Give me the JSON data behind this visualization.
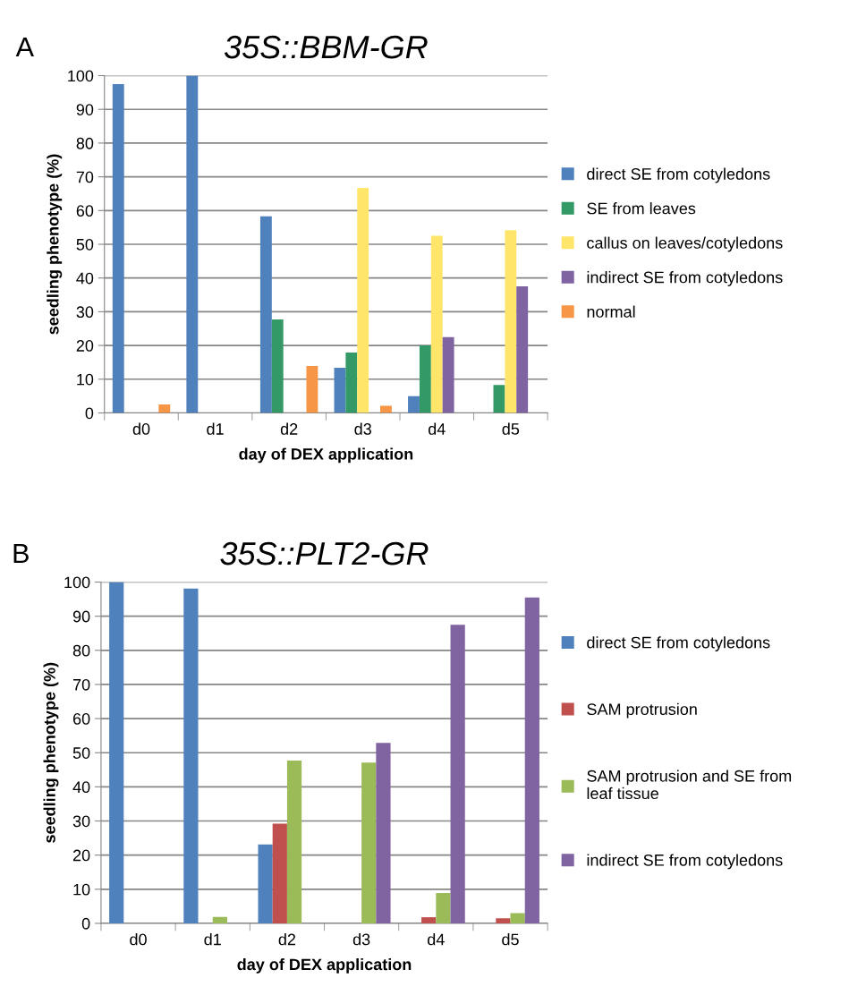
{
  "chart_data": [
    {
      "type": "bar",
      "title": "35S::BBM-GR",
      "xlabel": "day of DEX application",
      "ylabel": "seedling phenotype (%)",
      "annotations": [
        "A"
      ],
      "categories": [
        "d0",
        "d1",
        "d2",
        "d3",
        "d4",
        "d5"
      ],
      "series": [
        {
          "name": "direct SE from cotyledons",
          "color": "#4f81bd",
          "values": [
            97.5,
            100,
            58.3,
            13.4,
            5,
            0
          ]
        },
        {
          "name": "SE from leaves",
          "color": "#339966",
          "values": [
            0,
            0,
            27.7,
            17.9,
            20,
            8.3
          ]
        },
        {
          "name": "callus on leaves/cotyledons",
          "color": "#ffe66b",
          "values": [
            0,
            0,
            0,
            66.7,
            52.5,
            54.2
          ]
        },
        {
          "name": "indirect SE from cotyledons",
          "color": "#8064a2",
          "values": [
            0,
            0,
            0,
            0,
            22.5,
            37.5
          ]
        },
        {
          "name": "normal",
          "color": "#f79646",
          "values": [
            2.5,
            0,
            13.9,
            2.1,
            0,
            0
          ]
        }
      ],
      "ylim": [
        0,
        100
      ],
      "yticks": [
        0,
        10,
        20,
        30,
        40,
        50,
        60,
        70,
        80,
        90,
        100
      ],
      "grid": "y",
      "legend": "right"
    },
    {
      "type": "bar",
      "title": "35S::PLT2-GR",
      "xlabel": "day of DEX application",
      "ylabel": "seedling phenotype (%)",
      "annotations": [
        "B"
      ],
      "categories": [
        "d0",
        "d1",
        "d2",
        "d3",
        "d4",
        "d5"
      ],
      "series": [
        {
          "name": "direct SE from cotyledons",
          "color": "#4f81bd",
          "values": [
            100,
            98.1,
            23.1,
            0,
            0,
            0
          ]
        },
        {
          "name": "SAM protrusion",
          "color": "#c0504d",
          "values": [
            0,
            0,
            29.2,
            0,
            1.8,
            1.5
          ]
        },
        {
          "name": "SAM protrusion and SE from\nleaf tissue",
          "color": "#9bbb59",
          "values": [
            0,
            1.9,
            47.7,
            47.1,
            8.9,
            3.0
          ]
        },
        {
          "name": "indirect SE from cotyledons",
          "color": "#8064a2",
          "values": [
            0,
            0,
            0,
            52.9,
            87.5,
            95.5
          ]
        }
      ],
      "ylim": [
        0,
        100
      ],
      "yticks": [
        0,
        10,
        20,
        30,
        40,
        50,
        60,
        70,
        80,
        90,
        100
      ],
      "grid": "y",
      "legend": "right"
    }
  ]
}
